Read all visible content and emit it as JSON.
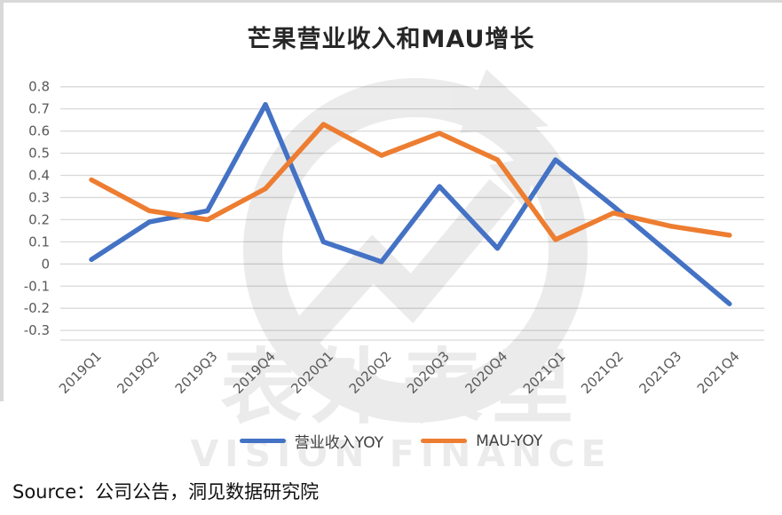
{
  "page": {
    "title": "芒果营业收入和MAU增长",
    "source_line": "Source：公司公告，洞见数据研究院",
    "watermark": {
      "cn": "表外表里",
      "en": "VISION FINANCE"
    }
  },
  "chart_data": {
    "type": "line",
    "title": "芒果营业收入和MAU增长",
    "categories": [
      "2019Q1",
      "2019Q2",
      "2019Q3",
      "2019Q4",
      "2020Q1",
      "2020Q2",
      "2020Q3",
      "2020Q4",
      "2021Q1",
      "2021Q2",
      "2021Q3",
      "2021Q4"
    ],
    "series": [
      {
        "name": "营业收入YOY",
        "color": "#4472C4",
        "values": [
          0.02,
          0.19,
          0.24,
          0.72,
          0.1,
          0.01,
          0.35,
          0.07,
          0.47,
          0.26,
          0.04,
          -0.18
        ]
      },
      {
        "name": "MAU-YOY",
        "color": "#ED7D31",
        "values": [
          0.38,
          0.24,
          0.2,
          0.34,
          0.63,
          0.49,
          0.59,
          0.47,
          0.11,
          0.23,
          0.17,
          0.13
        ]
      }
    ],
    "xlabel": "",
    "ylabel": "",
    "ylim": [
      -0.3,
      0.8
    ],
    "yticks": [
      0.8,
      0.7,
      0.6,
      0.5,
      0.4,
      0.3,
      0.2,
      0.1,
      0,
      -0.1,
      -0.2,
      -0.3
    ],
    "ytick_labels": [
      "0.8",
      "0.7",
      "0.6",
      "0.5",
      "0.4",
      "0.3",
      "0.2",
      "0.1",
      "0",
      "-0.1",
      "-0.2",
      "-0.3"
    ],
    "grid": "horizontal",
    "legend_position": "bottom",
    "colors": {
      "gridline": "#D9D9D9",
      "tick_label": "#595959",
      "title": "#262626"
    }
  }
}
